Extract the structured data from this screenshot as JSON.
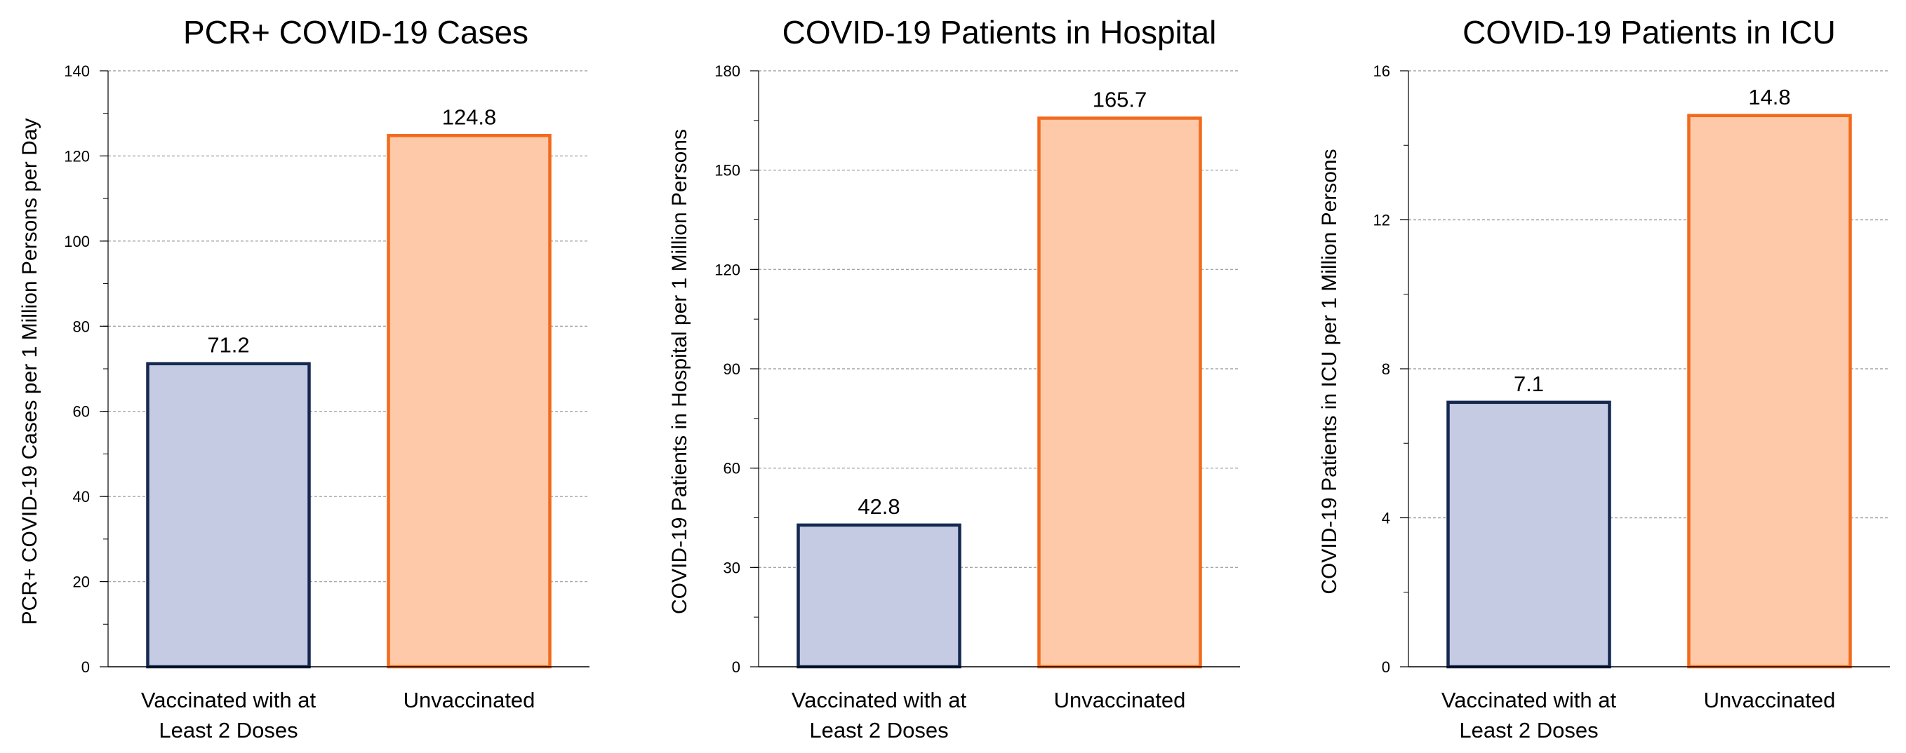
{
  "chart_data": [
    {
      "type": "bar",
      "title": "PCR+ COVID-19 Cases",
      "ylabel": "PCR+ COVID-19 Cases per 1 Million Persons per Day",
      "xlabel": "",
      "categories": [
        "Vaccinated with at|Least 2 Doses",
        "Unvaccinated"
      ],
      "values": [
        71.2,
        124.8
      ],
      "data_labels": [
        "71.2",
        "124.8"
      ],
      "ylim": [
        0,
        140
      ],
      "yticks": [
        0,
        20,
        40,
        60,
        80,
        100,
        120,
        140
      ],
      "minor_tick_step": 10,
      "grid": true
    },
    {
      "type": "bar",
      "title": "COVID-19 Patients in Hospital",
      "ylabel": "COVID-19 Patients in Hospital per 1 Million Persons",
      "xlabel": "",
      "categories": [
        "Vaccinated with at|Least 2 Doses",
        "Unvaccinated"
      ],
      "values": [
        42.8,
        165.7
      ],
      "data_labels": [
        "42.8",
        "165.7"
      ],
      "ylim": [
        0,
        180
      ],
      "yticks": [
        0,
        30,
        60,
        90,
        120,
        150,
        180
      ],
      "minor_tick_step": 15,
      "grid": true
    },
    {
      "type": "bar",
      "title": "COVID-19 Patients in ICU",
      "ylabel": "COVID-19 Patients in ICU  per 1 Million Persons",
      "xlabel": "",
      "categories": [
        "Vaccinated with at|Least 2 Doses",
        "Unvaccinated"
      ],
      "values": [
        7.1,
        14.8
      ],
      "data_labels": [
        "7.1",
        "14.8"
      ],
      "ylim": [
        0,
        16
      ],
      "yticks": [
        0,
        4,
        8,
        12,
        16
      ],
      "minor_tick_step": 2,
      "grid": true
    }
  ],
  "colors": {
    "vaccinated_fill": "#c5cbe3",
    "vaccinated_stroke": "#142850",
    "unvaccinated_fill": "#fdc9a9",
    "unvaccinated_stroke": "#f26a1b",
    "gridline": "#a6a6a6",
    "axis": "#000000"
  }
}
